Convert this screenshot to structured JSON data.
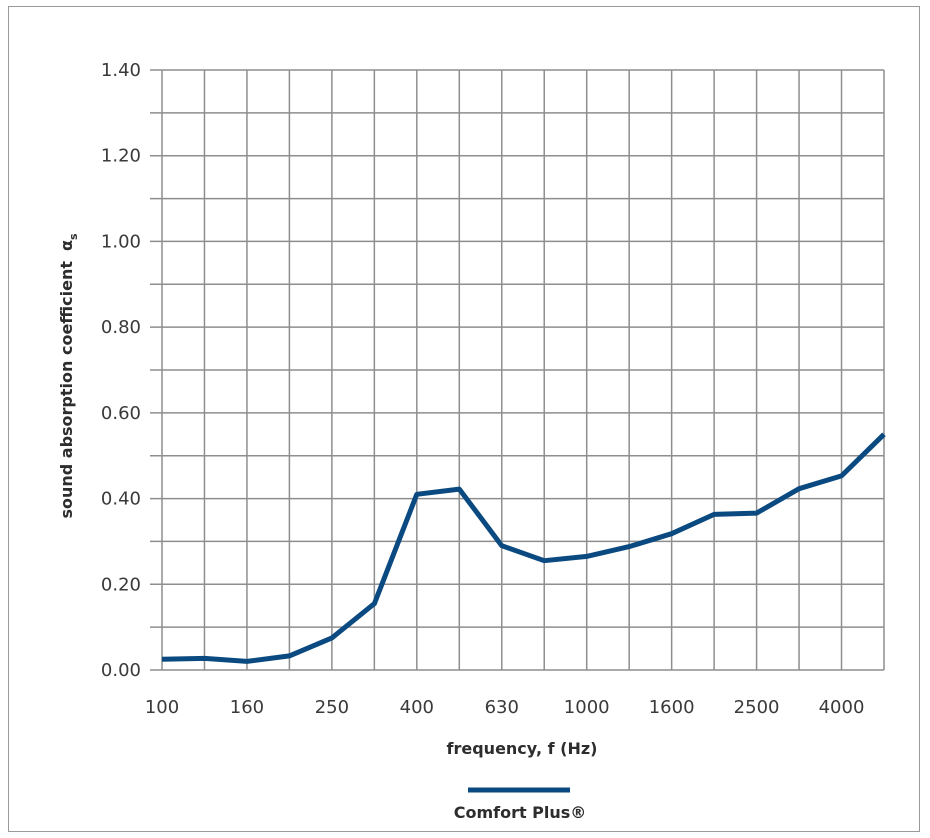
{
  "chart_data": {
    "type": "line",
    "x": [
      "100",
      "125",
      "160",
      "200",
      "250",
      "315",
      "400",
      "500",
      "630",
      "800",
      "1000",
      "1250",
      "1600",
      "2000",
      "2500",
      "3150",
      "4000",
      "5000"
    ],
    "x_tick_labels": [
      "100",
      "160",
      "250",
      "400",
      "630",
      "1000",
      "1600",
      "2500",
      "4000"
    ],
    "y_tick_labels": [
      "0.00",
      "0.20",
      "0.40",
      "0.60",
      "0.80",
      "1.00",
      "1.20",
      "1.40"
    ],
    "ylim": [
      0,
      1.4
    ],
    "xlabel": "frequency, f (Hz)",
    "ylabel": "sound absorption coefficient",
    "ylabel_symbol": "α",
    "ylabel_subscript": "s",
    "grid": true,
    "legend_position": "bottom-center",
    "series": [
      {
        "name": "Comfort Plus®",
        "color": "#0b4a80",
        "values": [
          0.025,
          0.027,
          0.02,
          0.033,
          0.075,
          0.155,
          0.41,
          0.422,
          0.29,
          0.255,
          0.265,
          0.288,
          0.318,
          0.363,
          0.366,
          0.423,
          0.453,
          0.55
        ]
      }
    ]
  }
}
